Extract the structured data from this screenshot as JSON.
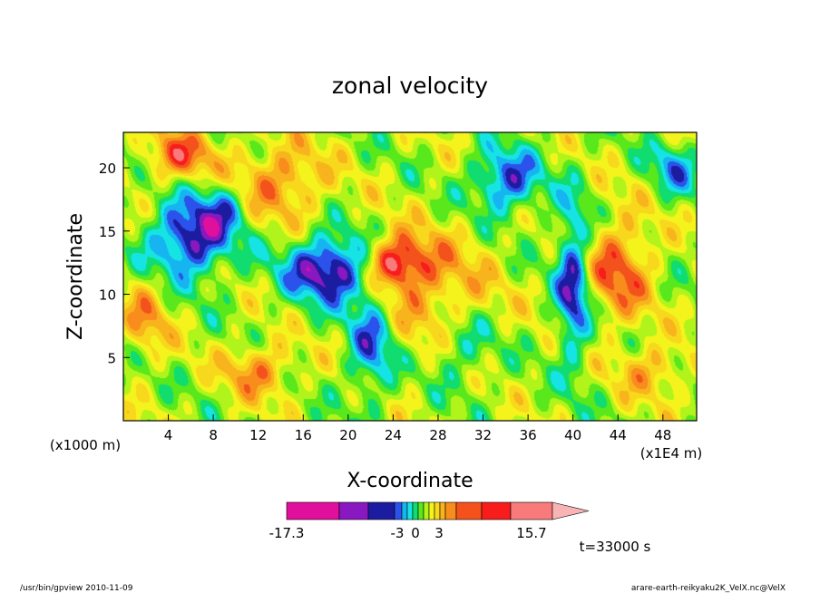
{
  "chart_data": {
    "type": "heatmap",
    "title": "zonal velocity",
    "xlabel": "X-coordinate",
    "ylabel": "Z-coordinate",
    "x_scale_note": "(x1000 m)",
    "x_unit_note": "(x1E4 m)",
    "xlim": [
      0,
      51
    ],
    "ylim": [
      0,
      22.8
    ],
    "x_ticks": [
      "4",
      "8",
      "12",
      "16",
      "20",
      "24",
      "28",
      "32",
      "36",
      "40",
      "44",
      "48"
    ],
    "y_ticks": [
      "5",
      "10",
      "15",
      "20"
    ],
    "colorbar": {
      "labels": [
        "-17.3",
        "-3",
        "0",
        "3",
        "15.7"
      ],
      "colors": [
        "#e0109c",
        "#8a18c0",
        "#1c1ca0",
        "#2c52ec",
        "#16b4f0",
        "#16e4e4",
        "#10dc70",
        "#58e81c",
        "#b0f41c",
        "#f4f41c",
        "#f8d81c",
        "#f8b41c",
        "#f88c1c",
        "#f4521c",
        "#f81c1c",
        "#f87a7a",
        "#f8b4b4"
      ]
    },
    "time_label": "t=33000 s",
    "grid": false
  },
  "footer": {
    "left": "/usr/bin/gpview   2010-11-09",
    "right": "arare-earth-reikyaku2K_VelX.nc@VelX"
  }
}
